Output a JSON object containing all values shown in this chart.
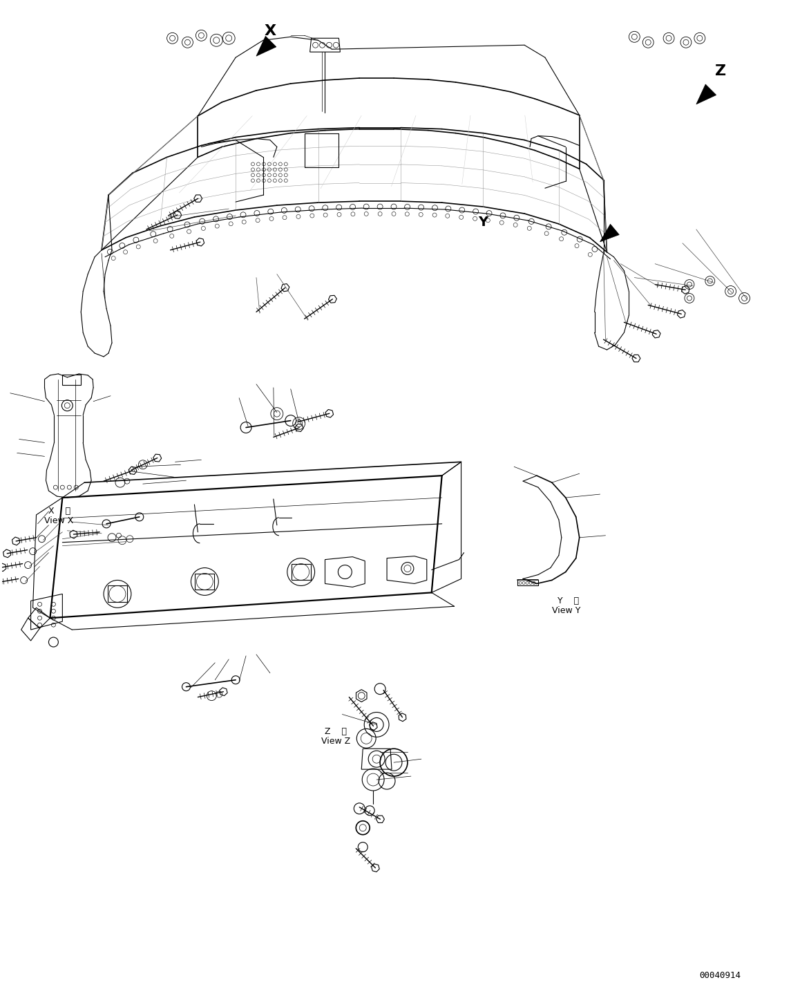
{
  "background_color": "#ffffff",
  "line_color": "#000000",
  "page_width": 11.45,
  "page_height": 14.57,
  "dpi": 100,
  "part_number": "00040914",
  "labels": {
    "view_x_kanji": "X    視",
    "view_x": "View X",
    "view_y_kanji": "Y    視",
    "view_y": "View Y",
    "view_z_kanji": "Z    視",
    "view_z": "View Z"
  }
}
